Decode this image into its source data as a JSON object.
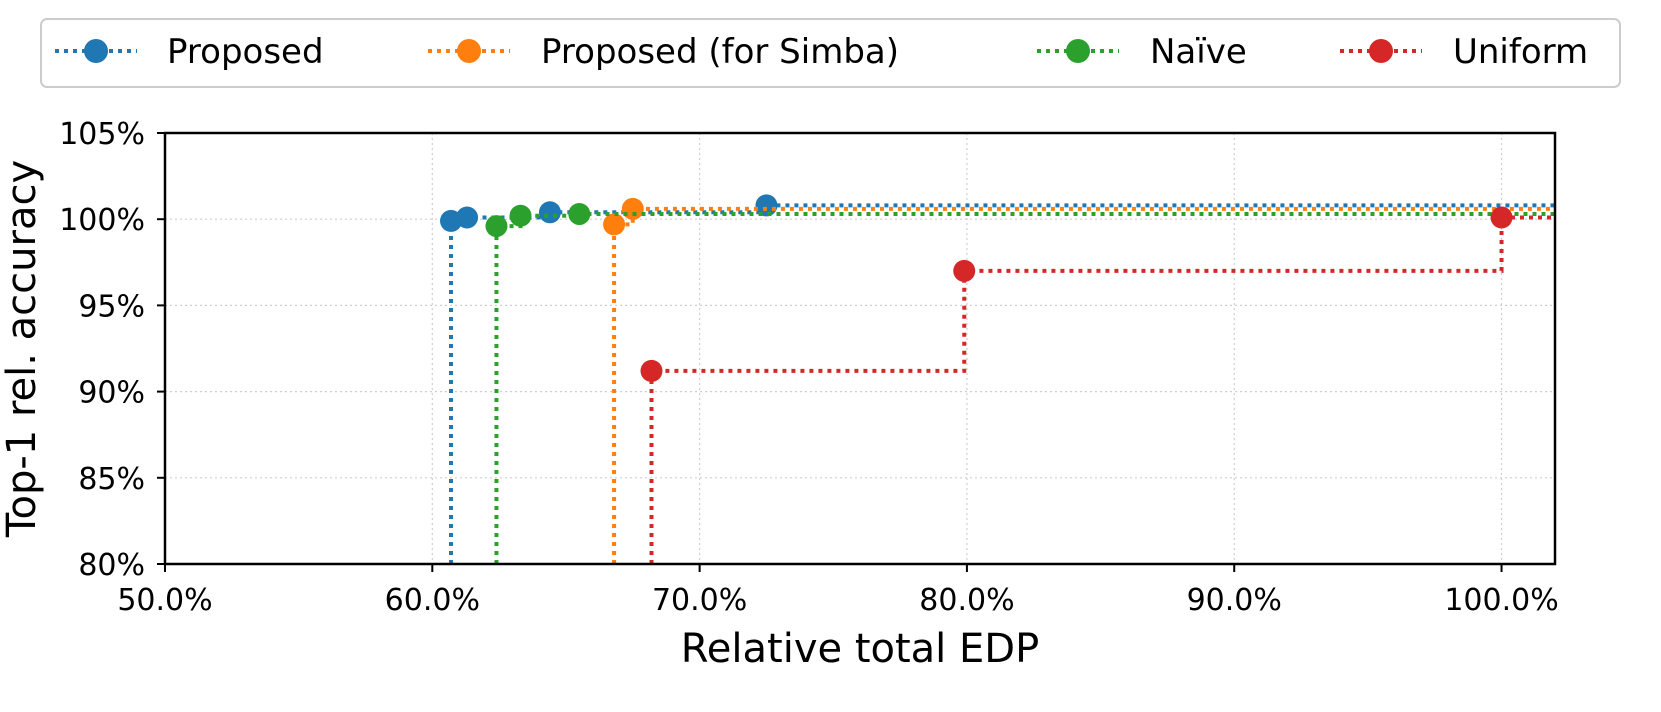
{
  "chart_data": {
    "type": "line",
    "step": "post",
    "xlabel": "Relative total EDP",
    "ylabel": "Top-1 rel. accuracy",
    "xlim": [
      50,
      102
    ],
    "ylim": [
      80,
      105
    ],
    "xticks": [
      50,
      60,
      70,
      80,
      90,
      100
    ],
    "yticks": [
      80,
      85,
      90,
      95,
      100,
      105
    ],
    "xtick_labels": [
      "50.0%",
      "60.0%",
      "70.0%",
      "80.0%",
      "90.0%",
      "100.0%"
    ],
    "ytick_labels": [
      "80%",
      "85%",
      "90%",
      "95%",
      "100%",
      "105%"
    ],
    "grid": true,
    "legend_position": "top",
    "series": [
      {
        "name": "Proposed",
        "color": "#1f77b4",
        "x": [
          60.7,
          61.3,
          64.4,
          72.5
        ],
        "y": [
          99.9,
          100.1,
          100.4,
          100.8
        ]
      },
      {
        "name": "Proposed (for Simba)",
        "color": "#ff7f0e",
        "x": [
          66.8,
          67.5
        ],
        "y": [
          99.7,
          100.6
        ]
      },
      {
        "name": "Naïve",
        "color": "#2ca02c",
        "x": [
          62.4,
          63.3,
          65.5
        ],
        "y": [
          99.6,
          100.2,
          100.3
        ]
      },
      {
        "name": "Uniform",
        "color": "#d62728",
        "x": [
          68.2,
          79.9,
          100.0
        ],
        "y": [
          91.2,
          97.0,
          100.1
        ]
      }
    ]
  }
}
